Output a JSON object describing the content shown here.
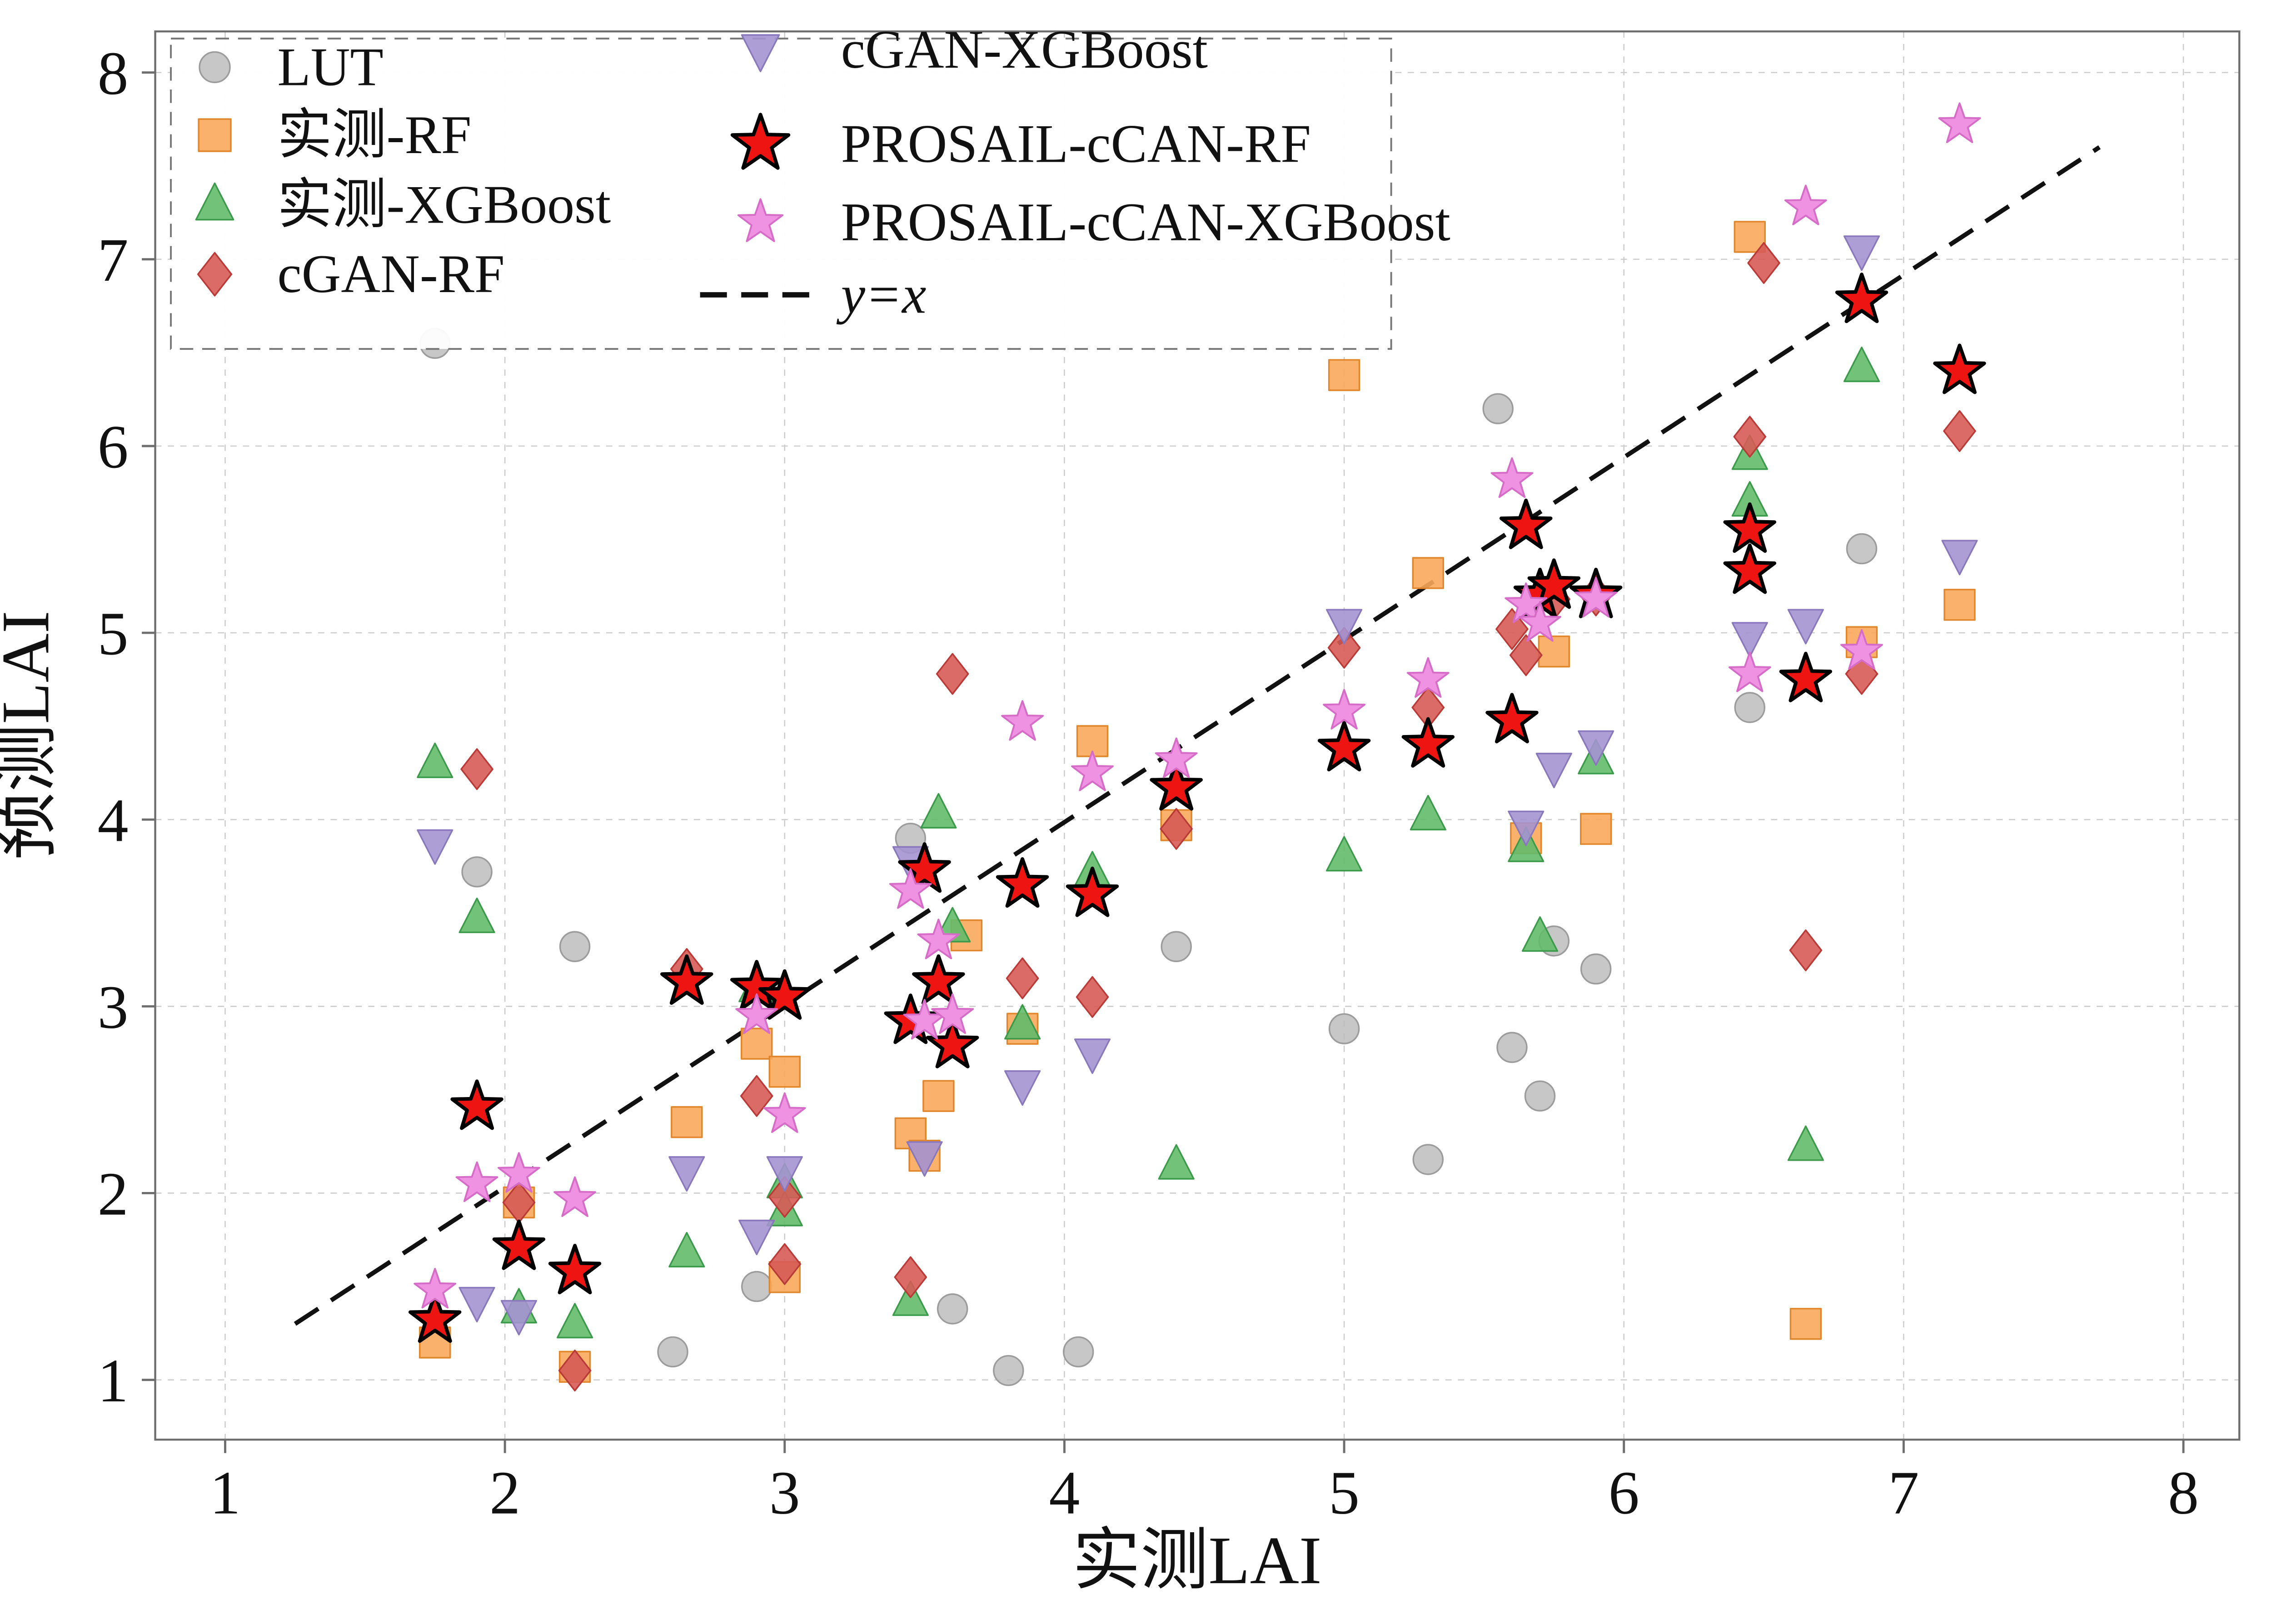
{
  "figure": {
    "xlabel": "实测LAI",
    "ylabel": "预测LAI"
  },
  "chart_data": {
    "type": "scatter",
    "title": "",
    "xlabel": "实测LAI",
    "ylabel": "预测LAI",
    "xlim": [
      0.75,
      8.2
    ],
    "ylim": [
      0.68,
      8.22
    ],
    "x_ticks": [
      1,
      2,
      3,
      4,
      5,
      6,
      7,
      8
    ],
    "y_ticks": [
      1,
      2,
      3,
      4,
      5,
      6,
      7,
      8
    ],
    "grid": "dashed-lightgray",
    "legend_position": "upper-left",
    "identity_line": {
      "label": "y=x",
      "from": [
        1.25,
        1.3
      ],
      "to": [
        7.7,
        7.6
      ],
      "style": "dashed",
      "color": "#111111"
    },
    "series": [
      {
        "name": "LUT",
        "marker": "circle",
        "color": "#b9b9b9",
        "edge": "#9c9c9c",
        "points": [
          [
            1.75,
            6.55
          ],
          [
            1.9,
            3.72
          ],
          [
            2.25,
            3.32
          ],
          [
            2.6,
            1.15
          ],
          [
            2.9,
            1.5
          ],
          [
            3.45,
            3.9
          ],
          [
            3.6,
            1.38
          ],
          [
            3.8,
            1.05
          ],
          [
            4.05,
            1.15
          ],
          [
            4.4,
            3.32
          ],
          [
            5.0,
            2.88
          ],
          [
            5.3,
            2.18
          ],
          [
            5.55,
            6.2
          ],
          [
            5.6,
            2.78
          ],
          [
            5.7,
            2.52
          ],
          [
            5.75,
            3.35
          ],
          [
            5.9,
            3.2
          ],
          [
            6.45,
            4.6
          ],
          [
            6.85,
            5.45
          ]
        ]
      },
      {
        "name": "实测-RF",
        "marker": "square",
        "color": "#f9a95c",
        "edge": "#e0862d",
        "points": [
          [
            1.75,
            1.2
          ],
          [
            2.05,
            1.95
          ],
          [
            2.25,
            1.07
          ],
          [
            2.65,
            2.38
          ],
          [
            2.9,
            2.8
          ],
          [
            3.0,
            2.65
          ],
          [
            3.0,
            1.55
          ],
          [
            3.45,
            2.32
          ],
          [
            3.5,
            2.2
          ],
          [
            3.55,
            2.52
          ],
          [
            3.65,
            3.38
          ],
          [
            3.85,
            2.88
          ],
          [
            4.1,
            4.42
          ],
          [
            4.4,
            3.97
          ],
          [
            5.0,
            6.38
          ],
          [
            5.3,
            5.32
          ],
          [
            5.65,
            3.9
          ],
          [
            5.75,
            4.9
          ],
          [
            5.9,
            3.95
          ],
          [
            6.45,
            7.12
          ],
          [
            6.65,
            1.3
          ],
          [
            6.85,
            4.95
          ],
          [
            7.2,
            5.15
          ]
        ]
      },
      {
        "name": "实测-XGBoost",
        "marker": "triangle-up",
        "color": "#63bb6c",
        "edge": "#3c9a4b",
        "points": [
          [
            1.75,
            4.3
          ],
          [
            1.9,
            3.47
          ],
          [
            2.05,
            1.38
          ],
          [
            2.25,
            1.3
          ],
          [
            2.65,
            1.68
          ],
          [
            2.9,
            3.1
          ],
          [
            3.0,
            2.05
          ],
          [
            3.0,
            1.9
          ],
          [
            3.45,
            1.42
          ],
          [
            3.55,
            4.03
          ],
          [
            3.6,
            3.42
          ],
          [
            3.85,
            2.9
          ],
          [
            4.1,
            3.72
          ],
          [
            4.4,
            2.15
          ],
          [
            5.0,
            3.8
          ],
          [
            5.3,
            4.02
          ],
          [
            5.65,
            3.85
          ],
          [
            5.7,
            3.37
          ],
          [
            5.9,
            4.32
          ],
          [
            6.45,
            5.95
          ],
          [
            6.45,
            5.7
          ],
          [
            6.65,
            2.25
          ],
          [
            6.85,
            6.42
          ]
        ]
      },
      {
        "name": "cGAN-RF",
        "marker": "diamond",
        "color": "#d65b56",
        "edge": "#b93a36",
        "points": [
          [
            1.9,
            4.27
          ],
          [
            2.05,
            1.95
          ],
          [
            2.25,
            1.05
          ],
          [
            2.65,
            3.2
          ],
          [
            2.9,
            2.52
          ],
          [
            3.0,
            1.62
          ],
          [
            3.0,
            1.98
          ],
          [
            3.45,
            1.55
          ],
          [
            3.6,
            4.78
          ],
          [
            3.85,
            3.15
          ],
          [
            4.1,
            3.05
          ],
          [
            4.4,
            3.95
          ],
          [
            5.0,
            4.92
          ],
          [
            5.3,
            4.6
          ],
          [
            5.6,
            5.02
          ],
          [
            5.65,
            4.88
          ],
          [
            5.75,
            5.18
          ],
          [
            5.9,
            5.2
          ],
          [
            6.45,
            6.05
          ],
          [
            6.5,
            6.98
          ],
          [
            6.65,
            3.3
          ],
          [
            6.85,
            4.78
          ],
          [
            7.2,
            6.08
          ]
        ]
      },
      {
        "name": "cGAN-XGBoost",
        "marker": "triangle-down",
        "color": "#a494d0",
        "edge": "#8a78bd",
        "points": [
          [
            1.75,
            3.87
          ],
          [
            1.9,
            1.42
          ],
          [
            2.05,
            1.35
          ],
          [
            2.65,
            2.12
          ],
          [
            2.9,
            1.78
          ],
          [
            3.0,
            2.12
          ],
          [
            3.45,
            3.78
          ],
          [
            3.5,
            2.2
          ],
          [
            3.85,
            2.58
          ],
          [
            4.1,
            2.75
          ],
          [
            5.0,
            5.05
          ],
          [
            5.65,
            3.97
          ],
          [
            5.75,
            4.28
          ],
          [
            5.9,
            4.4
          ],
          [
            6.45,
            4.98
          ],
          [
            6.65,
            5.05
          ],
          [
            6.85,
            7.05
          ],
          [
            7.2,
            5.42
          ]
        ]
      },
      {
        "name": "PROSAIL-cCAN-RF",
        "marker": "star",
        "color": "#ee1411",
        "edge": "#000000",
        "points": [
          [
            1.75,
            1.32
          ],
          [
            1.9,
            2.46
          ],
          [
            2.05,
            1.71
          ],
          [
            2.25,
            1.58
          ],
          [
            2.65,
            3.13
          ],
          [
            2.9,
            3.1
          ],
          [
            3.0,
            3.05
          ],
          [
            3.45,
            2.92
          ],
          [
            3.5,
            3.73
          ],
          [
            3.55,
            3.13
          ],
          [
            3.6,
            2.79
          ],
          [
            3.85,
            3.65
          ],
          [
            4.1,
            3.6
          ],
          [
            4.4,
            4.17
          ],
          [
            5.0,
            4.38
          ],
          [
            5.3,
            4.4
          ],
          [
            5.6,
            4.53
          ],
          [
            5.65,
            5.57
          ],
          [
            5.7,
            5.2
          ],
          [
            5.75,
            5.25
          ],
          [
            5.9,
            5.2
          ],
          [
            6.45,
            5.55
          ],
          [
            6.45,
            5.33
          ],
          [
            6.65,
            4.75
          ],
          [
            6.85,
            6.78
          ],
          [
            7.2,
            6.4
          ]
        ]
      },
      {
        "name": "PROSAIL-cCAN-XGBoost",
        "marker": "star",
        "color": "#ef92e2",
        "edge": "#d56cc7",
        "points": [
          [
            1.75,
            1.48
          ],
          [
            1.9,
            2.05
          ],
          [
            2.05,
            2.1
          ],
          [
            2.25,
            1.97
          ],
          [
            2.9,
            2.95
          ],
          [
            3.0,
            2.42
          ],
          [
            3.45,
            3.62
          ],
          [
            3.5,
            2.92
          ],
          [
            3.55,
            3.35
          ],
          [
            3.6,
            2.95
          ],
          [
            3.85,
            4.52
          ],
          [
            4.1,
            4.25
          ],
          [
            4.4,
            4.32
          ],
          [
            5.0,
            4.58
          ],
          [
            5.3,
            4.75
          ],
          [
            5.6,
            5.82
          ],
          [
            5.65,
            5.15
          ],
          [
            5.7,
            5.05
          ],
          [
            5.9,
            5.18
          ],
          [
            6.45,
            4.78
          ],
          [
            6.65,
            7.28
          ],
          [
            6.85,
            4.9
          ],
          [
            7.2,
            7.72
          ]
        ]
      }
    ]
  }
}
